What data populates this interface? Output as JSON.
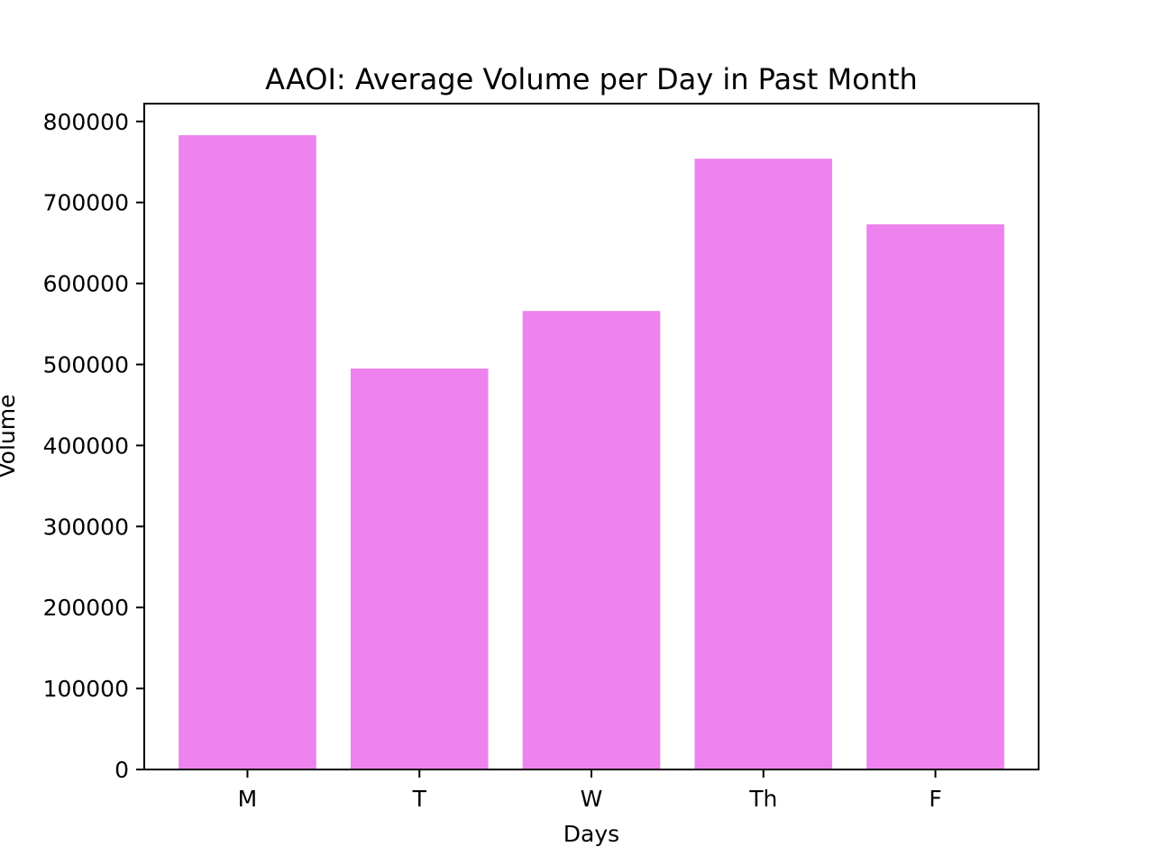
{
  "chart_data": {
    "type": "bar",
    "title": "AAOI: Average Volume per Day in Past Month",
    "xlabel": "Days",
    "ylabel": "Volume",
    "categories": [
      "M",
      "T",
      "W",
      "Th",
      "F"
    ],
    "values": [
      783000,
      495000,
      566000,
      754000,
      673000
    ],
    "ylim": [
      0,
      822000
    ],
    "yticks": [
      0,
      100000,
      200000,
      300000,
      400000,
      500000,
      600000,
      700000,
      800000
    ],
    "ytick_labels": [
      "0",
      "100000",
      "200000",
      "300000",
      "400000",
      "500000",
      "600000",
      "700000",
      "800000"
    ],
    "bar_color": "#ee82ee",
    "grid": false,
    "legend": "none"
  }
}
